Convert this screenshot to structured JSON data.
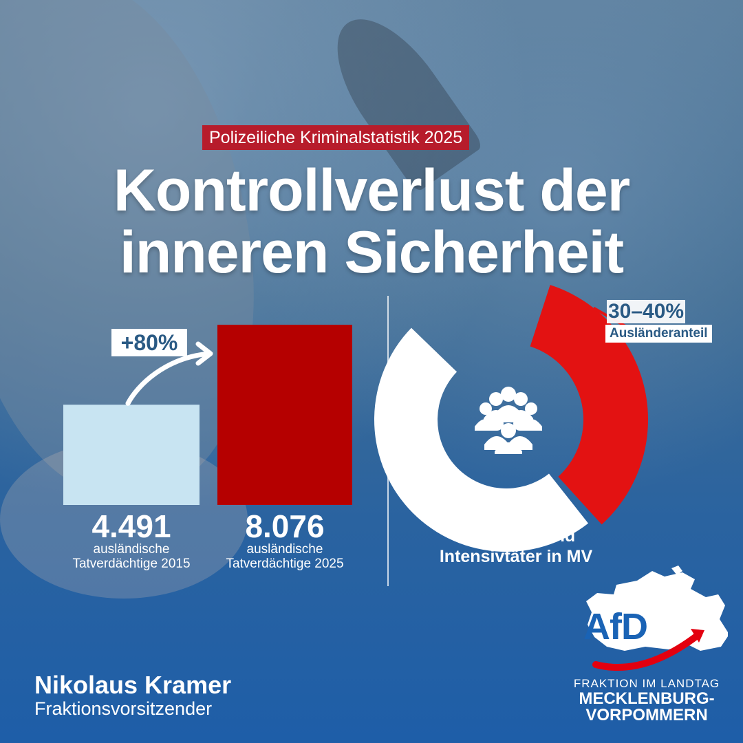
{
  "colors": {
    "accent_red": "#b71c2b",
    "bar_2015": "#c8e4f2",
    "bar_2025": "#b50000",
    "donut_share": "#e31212",
    "donut_ring": "#ffffff",
    "text_blue": "#2a5a84"
  },
  "header": {
    "tagline": "Polizeiliche Kriminalstatistik 2025",
    "headline_line1": "Kontrollverlust der",
    "headline_line2": "inneren Sicherheit"
  },
  "chart_data": [
    {
      "type": "bar",
      "categories": [
        "2015",
        "2025"
      ],
      "values": [
        4491,
        8076
      ],
      "value_labels": [
        "4.491",
        "8.076"
      ],
      "category_labels": [
        [
          "ausländische",
          "Tatverdächtige 2015"
        ],
        [
          "ausländische",
          "Tatverdächtige 2025"
        ]
      ],
      "annotation": "+80%",
      "colors": [
        "#c8e4f2",
        "#b50000"
      ],
      "grid": false
    },
    {
      "type": "pie",
      "variant": "donut",
      "share_min_pct": 30,
      "share_max_pct": 40,
      "share_label": "30–40%",
      "share_caption": "Ausländeranteil",
      "caption_line1": "Mehrfach- und",
      "caption_line2": "Intensivtäter in MV",
      "icon": "people-group-icon"
    }
  ],
  "footer": {
    "name": "Nikolaus Kramer",
    "role": "Fraktionsvorsitzender"
  },
  "logo": {
    "wordmark": "AfD",
    "org_line1": "FRAKTION IM LANDTAG",
    "org_line2": "MECKLENBURG-",
    "org_line3": "VORPOMMERN"
  }
}
